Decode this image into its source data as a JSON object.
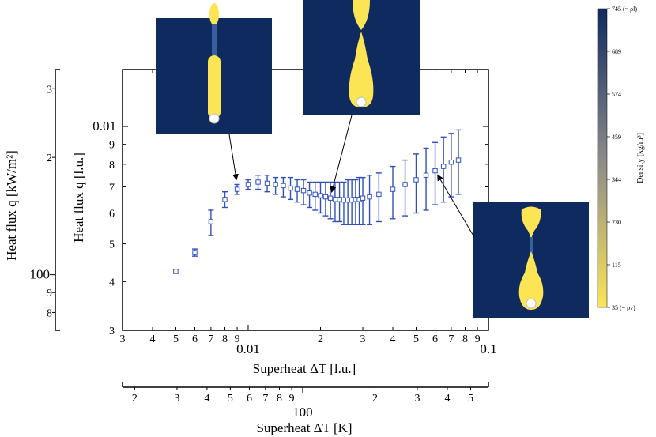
{
  "chart_data": {
    "type": "scatter",
    "x_scale": "log",
    "y_scale": "log",
    "xlabel": "Superheat ΔT [l.u.]",
    "ylabel": "Heat flux q [l.u.]",
    "xlim": [
      0.003,
      0.1
    ],
    "ylim": [
      0.003,
      0.014
    ],
    "x_ticks": [
      {
        "v": 0.003,
        "t": "3"
      },
      {
        "v": 0.004,
        "t": "4"
      },
      {
        "v": 0.005,
        "t": "5"
      },
      {
        "v": 0.006,
        "t": "6"
      },
      {
        "v": 0.007,
        "t": "7"
      },
      {
        "v": 0.008,
        "t": "8"
      },
      {
        "v": 0.009,
        "t": "9"
      },
      {
        "v": 0.01,
        "t": "0.01",
        "major": true
      },
      {
        "v": 0.02,
        "t": "2"
      },
      {
        "v": 0.03,
        "t": "3"
      },
      {
        "v": 0.04,
        "t": "4"
      },
      {
        "v": 0.05,
        "t": "5"
      },
      {
        "v": 0.06,
        "t": "6"
      },
      {
        "v": 0.07,
        "t": "7"
      },
      {
        "v": 0.08,
        "t": "8"
      },
      {
        "v": 0.09,
        "t": "9"
      },
      {
        "v": 0.1,
        "t": "0.1",
        "major": true
      }
    ],
    "y_ticks": [
      {
        "v": 0.003,
        "t": "3"
      },
      {
        "v": 0.004,
        "t": "4"
      },
      {
        "v": 0.005,
        "t": "5"
      },
      {
        "v": 0.006,
        "t": "6"
      },
      {
        "v": 0.007,
        "t": "7"
      },
      {
        "v": 0.008,
        "t": "8"
      },
      {
        "v": 0.009,
        "t": "9"
      },
      {
        "v": 0.01,
        "t": "0.01",
        "major": true
      }
    ],
    "x_secondary": {
      "label": "Superheat ΔT [K]",
      "scale": "log",
      "range": [
        17.8,
        593
      ],
      "ticks": [
        {
          "v": 20,
          "t": "2"
        },
        {
          "v": 30,
          "t": "3"
        },
        {
          "v": 40,
          "t": "4"
        },
        {
          "v": 50,
          "t": "5"
        },
        {
          "v": 60,
          "t": "6"
        },
        {
          "v": 70,
          "t": "7"
        },
        {
          "v": 80,
          "t": "8"
        },
        {
          "v": 90,
          "t": "9"
        },
        {
          "v": 100,
          "t": "100",
          "major": true
        },
        {
          "v": 200,
          "t": "2"
        },
        {
          "v": 300,
          "t": "3"
        },
        {
          "v": 400,
          "t": "4"
        },
        {
          "v": 500,
          "t": "5"
        }
      ]
    },
    "y_secondary": {
      "label": "Heat flux q [kW/m²]",
      "scale": "log",
      "range": [
        72,
        336
      ],
      "ticks": [
        {
          "v": 80,
          "t": "8"
        },
        {
          "v": 90,
          "t": "9"
        },
        {
          "v": 100,
          "t": "100",
          "major": true
        },
        {
          "v": 200,
          "t": "2"
        },
        {
          "v": 300,
          "t": "3"
        }
      ]
    },
    "series": [
      {
        "color": "#2f4fbf",
        "marker": "open-square",
        "points": [
          {
            "x": 0.005,
            "y": 0.00425,
            "lo": 0.0042,
            "hi": 0.0043
          },
          {
            "x": 0.006,
            "y": 0.00475,
            "lo": 0.00465,
            "hi": 0.00485
          },
          {
            "x": 0.007,
            "y": 0.0057,
            "lo": 0.00525,
            "hi": 0.0061
          },
          {
            "x": 0.008,
            "y": 0.0065,
            "lo": 0.0062,
            "hi": 0.0068
          },
          {
            "x": 0.009,
            "y": 0.0069,
            "lo": 0.0067,
            "hi": 0.0071
          },
          {
            "x": 0.01,
            "y": 0.0071,
            "lo": 0.0069,
            "hi": 0.0073
          },
          {
            "x": 0.011,
            "y": 0.0072,
            "lo": 0.0069,
            "hi": 0.0075
          },
          {
            "x": 0.012,
            "y": 0.00715,
            "lo": 0.0068,
            "hi": 0.0075
          },
          {
            "x": 0.013,
            "y": 0.0071,
            "lo": 0.0067,
            "hi": 0.0074
          },
          {
            "x": 0.014,
            "y": 0.00705,
            "lo": 0.0066,
            "hi": 0.0074
          },
          {
            "x": 0.015,
            "y": 0.00695,
            "lo": 0.0065,
            "hi": 0.0074
          },
          {
            "x": 0.016,
            "y": 0.0069,
            "lo": 0.0064,
            "hi": 0.0073
          },
          {
            "x": 0.017,
            "y": 0.00685,
            "lo": 0.0063,
            "hi": 0.0073
          },
          {
            "x": 0.018,
            "y": 0.00675,
            "lo": 0.0062,
            "hi": 0.0072
          },
          {
            "x": 0.019,
            "y": 0.0067,
            "lo": 0.0061,
            "hi": 0.0072
          },
          {
            "x": 0.02,
            "y": 0.00665,
            "lo": 0.006,
            "hi": 0.0072
          },
          {
            "x": 0.021,
            "y": 0.0066,
            "lo": 0.0059,
            "hi": 0.0072
          },
          {
            "x": 0.022,
            "y": 0.00655,
            "lo": 0.0058,
            "hi": 0.0072
          },
          {
            "x": 0.023,
            "y": 0.0065,
            "lo": 0.0057,
            "hi": 0.0072
          },
          {
            "x": 0.024,
            "y": 0.0065,
            "lo": 0.0057,
            "hi": 0.0072
          },
          {
            "x": 0.025,
            "y": 0.00648,
            "lo": 0.0056,
            "hi": 0.0072
          },
          {
            "x": 0.026,
            "y": 0.00648,
            "lo": 0.0056,
            "hi": 0.0073
          },
          {
            "x": 0.027,
            "y": 0.00648,
            "lo": 0.0056,
            "hi": 0.0073
          },
          {
            "x": 0.028,
            "y": 0.0065,
            "lo": 0.0056,
            "hi": 0.0073
          },
          {
            "x": 0.029,
            "y": 0.0065,
            "lo": 0.0056,
            "hi": 0.0074
          },
          {
            "x": 0.03,
            "y": 0.00655,
            "lo": 0.0056,
            "hi": 0.0074
          },
          {
            "x": 0.032,
            "y": 0.0066,
            "lo": 0.0056,
            "hi": 0.0075
          },
          {
            "x": 0.035,
            "y": 0.0067,
            "lo": 0.0057,
            "hi": 0.0076
          },
          {
            "x": 0.04,
            "y": 0.0069,
            "lo": 0.0058,
            "hi": 0.0079
          },
          {
            "x": 0.045,
            "y": 0.0071,
            "lo": 0.0059,
            "hi": 0.0082
          },
          {
            "x": 0.05,
            "y": 0.0073,
            "lo": 0.006,
            "hi": 0.0085
          },
          {
            "x": 0.055,
            "y": 0.0075,
            "lo": 0.0061,
            "hi": 0.0088
          },
          {
            "x": 0.06,
            "y": 0.0077,
            "lo": 0.0063,
            "hi": 0.0091
          },
          {
            "x": 0.065,
            "y": 0.0079,
            "lo": 0.0064,
            "hi": 0.0094
          },
          {
            "x": 0.07,
            "y": 0.0081,
            "lo": 0.0066,
            "hi": 0.0096
          },
          {
            "x": 0.075,
            "y": 0.0082,
            "lo": 0.0067,
            "hi": 0.0098
          }
        ]
      }
    ],
    "colorbar": {
      "label": "Density [kg/m³]",
      "colors": [
        "#fce555",
        "#8a8a8a",
        "#0f2a5e"
      ],
      "ticks": [
        "35 (= ρv)",
        "115",
        "230",
        "344",
        "459",
        "574",
        "689",
        "745 (= ρl)"
      ]
    },
    "insets": [
      {
        "name": "inset-left",
        "points_to": {
          "x": 0.009,
          "y": 0.0071
        }
      },
      {
        "name": "inset-middle",
        "points_to": {
          "x": 0.022,
          "y": 0.0066
        }
      },
      {
        "name": "inset-right",
        "points_to": {
          "x": 0.06,
          "y": 0.0077
        }
      }
    ],
    "grid": false,
    "legend": "none"
  }
}
